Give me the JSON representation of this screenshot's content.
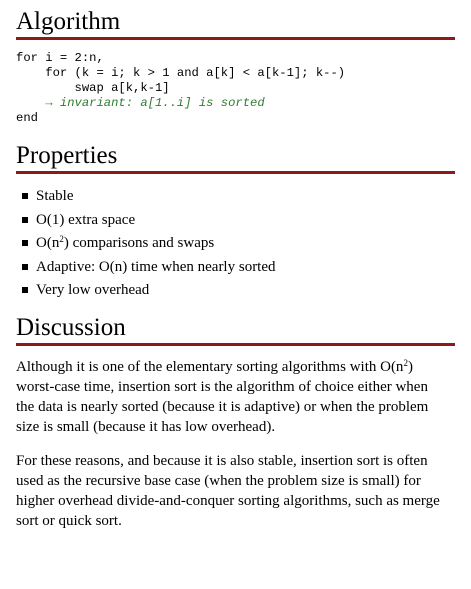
{
  "algorithm": {
    "title": "Algorithm",
    "code_lines": [
      "for i = 2:n,",
      "    for (k = i; k > 1 and a[k] < a[k-1]; k--)",
      "        swap a[k,k-1]",
      "    → invariant: a[1..i] is sorted",
      "end"
    ]
  },
  "properties": {
    "title": "Properties",
    "items": [
      {
        "text": "Stable"
      },
      {
        "text": "O(1) extra space"
      },
      {
        "pre": "O(n",
        "sup": "2",
        "post": ") comparisons and swaps"
      },
      {
        "text": "Adaptive: O(n) time when nearly sorted"
      },
      {
        "text": "Very low overhead"
      }
    ]
  },
  "discussion": {
    "title": "Discussion",
    "para1_pre": "Although it is one of the elementary sorting algorithms with O(n",
    "para1_sup": "2",
    "para1_post": ") worst-case time, insertion sort is the algorithm of choice either when the data is nearly sorted (because it is adaptive) or when the problem size is small (because it has low overhead).",
    "para2": "For these reasons, and because it is also stable, insertion sort is often used as the recursive base case (when the problem size is small) for higher overhead divide-and-conquer sorting algorithms, such as merge sort or quick sort."
  }
}
